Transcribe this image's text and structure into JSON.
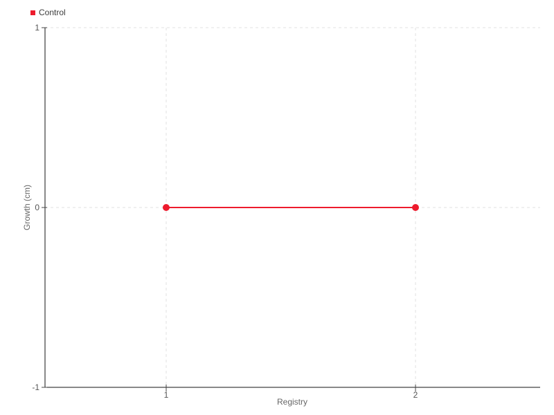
{
  "legend": {
    "position": "top-left",
    "items": [
      {
        "label": "Control",
        "color": "#ed1b2d",
        "marker": "square"
      }
    ]
  },
  "chart_data": {
    "type": "line",
    "title": "",
    "xlabel": "Registry",
    "ylabel": "Growth (cm)",
    "xlim": [
      0.514,
      2.5
    ],
    "ylim": [
      -1,
      1
    ],
    "xticks": [
      "1",
      "2"
    ],
    "xtick_values": [
      1,
      2
    ],
    "yticks": [
      "1",
      "0",
      "-1"
    ],
    "ytick_values": [
      1,
      0,
      -1
    ],
    "grid": true,
    "grid_style": "dashed",
    "legend_position": "top-left",
    "series": [
      {
        "name": "Control",
        "color": "#ed1b2d",
        "marker": "circle",
        "x": [
          1,
          2
        ],
        "y": [
          0,
          0
        ]
      }
    ]
  },
  "colors": {
    "background": "#ffffff",
    "axis": "#111111",
    "grid": "#e2e2e2",
    "tick": "#444444",
    "tick_label": "#555555",
    "axis_title": "#666666",
    "legend_text": "#3a3a3a",
    "series_red": "#ed1b2d"
  }
}
